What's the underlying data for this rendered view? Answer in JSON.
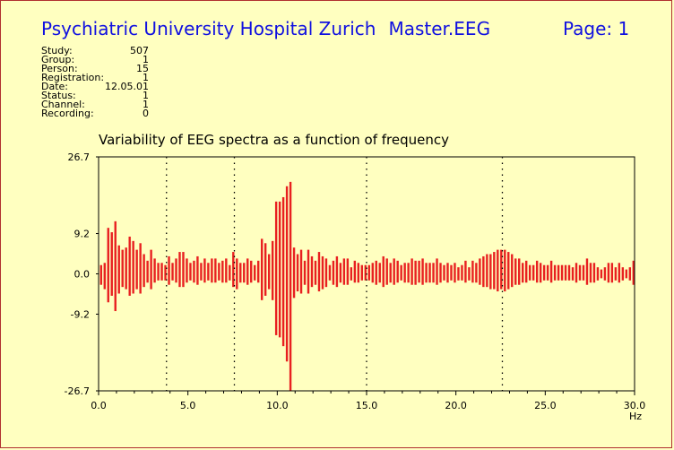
{
  "header": {
    "institution": "Psychiatric University Hospital Zurich",
    "program": "Master.EEG",
    "page_label": "Page:",
    "page_number": "1"
  },
  "meta": [
    {
      "key": "Study:",
      "value": "507"
    },
    {
      "key": "Group:",
      "value": "1"
    },
    {
      "key": "Person:",
      "value": "15"
    },
    {
      "key": "Registration:",
      "value": "1"
    },
    {
      "key": "Date:",
      "value": "12.05.01"
    },
    {
      "key": "Status:",
      "value": "1"
    },
    {
      "key": "Channel:",
      "value": "1"
    },
    {
      "key": "Recording:",
      "value": "0"
    }
  ],
  "colors": {
    "header_text": "#1010E0",
    "bars": "#E82020",
    "background": "#FFFFC0",
    "border": "#B03030"
  },
  "chart_data": {
    "type": "bar",
    "title": "Variability of EEG spectra as a function of frequency",
    "xlabel": "Hz",
    "ylabel": "",
    "xlim": [
      0,
      30
    ],
    "ylim": [
      -26.7,
      26.7
    ],
    "x_ticks": [
      "0.0",
      "5.0",
      "10.0",
      "15.0",
      "20.0",
      "25.0",
      "30.0"
    ],
    "y_ticks": [
      "26.7",
      "9.2",
      "0.0",
      "-9.2",
      "-26.7"
    ],
    "y_tick_values": [
      26.7,
      9.2,
      0,
      -9.2,
      -26.7
    ],
    "band_boundaries_hz": [
      3.8,
      7.6,
      15.0,
      22.6
    ],
    "bin_width_hz": 0.2,
    "x": [
      0.2,
      0.4,
      0.6,
      0.8,
      1.0,
      1.2,
      1.4,
      1.6,
      1.8,
      2.0,
      2.2,
      2.4,
      2.6,
      2.8,
      3.0,
      3.2,
      3.4,
      3.6,
      3.8,
      4.0,
      4.2,
      4.4,
      4.6,
      4.8,
      5.0,
      5.2,
      5.4,
      5.6,
      5.8,
      6.0,
      6.2,
      6.4,
      6.6,
      6.8,
      7.0,
      7.2,
      7.4,
      7.6,
      7.8,
      8.0,
      8.2,
      8.4,
      8.6,
      8.8,
      9.0,
      9.2,
      9.4,
      9.6,
      9.8,
      10.0,
      10.2,
      10.4,
      10.6,
      10.8,
      11.0,
      11.2,
      11.4,
      11.6,
      11.8,
      12.0,
      12.2,
      12.4,
      12.6,
      12.8,
      13.0,
      13.2,
      13.4,
      13.6,
      13.8,
      14.0,
      14.2,
      14.4,
      14.6,
      14.8,
      15.0,
      15.2,
      15.4,
      15.6,
      15.8,
      16.0,
      16.2,
      16.4,
      16.6,
      16.8,
      17.0,
      17.2,
      17.4,
      17.6,
      17.8,
      18.0,
      18.2,
      18.4,
      18.6,
      18.8,
      19.0,
      19.2,
      19.4,
      19.6,
      19.8,
      20.0,
      20.2,
      20.4,
      20.6,
      20.8,
      21.0,
      21.2,
      21.4,
      21.6,
      21.8,
      22.0,
      22.2,
      22.4,
      22.6,
      22.8,
      23.0,
      23.2,
      23.4,
      23.6,
      23.8,
      24.0,
      24.2,
      24.4,
      24.6,
      24.8,
      25.0,
      25.2,
      25.4,
      25.6,
      25.8,
      26.0,
      26.2,
      26.4,
      26.6,
      26.8,
      27.0,
      27.2,
      27.4,
      27.6,
      27.8,
      28.0,
      28.2,
      28.4,
      28.6,
      28.8,
      29.0,
      29.2,
      29.4,
      29.6,
      29.8,
      30.0
    ],
    "values": [
      2.0,
      2.5,
      10.5,
      9.5,
      12.0,
      6.5,
      5.5,
      6.0,
      8.5,
      7.5,
      5.5,
      7.0,
      4.5,
      3.0,
      5.5,
      3.5,
      2.5,
      2.5,
      2.0,
      4.0,
      2.5,
      3.5,
      5.0,
      5.0,
      3.5,
      2.5,
      3.0,
      4.0,
      2.5,
      3.5,
      2.5,
      3.5,
      3.5,
      2.5,
      3.0,
      3.5,
      2.0,
      5.0,
      3.5,
      2.5,
      2.5,
      3.5,
      3.0,
      2.0,
      3.0,
      8.0,
      7.0,
      4.5,
      7.5,
      16.5,
      16.5,
      17.5,
      20.0,
      21.0,
      6.0,
      4.5,
      5.5,
      3.0,
      5.5,
      4.0,
      3.0,
      5.0,
      4.0,
      3.5,
      2.0,
      3.0,
      4.0,
      2.5,
      3.5,
      3.5,
      1.5,
      3.0,
      2.5,
      2.0,
      2.0,
      2.0,
      2.5,
      3.0,
      2.5,
      4.0,
      3.5,
      2.5,
      3.5,
      3.0,
      2.0,
      2.5,
      2.5,
      3.5,
      3.0,
      3.0,
      3.5,
      2.5,
      2.5,
      2.5,
      3.5,
      2.5,
      2.0,
      2.5,
      2.0,
      2.5,
      1.5,
      2.0,
      3.0,
      1.5,
      3.0,
      2.5,
      3.5,
      4.0,
      4.5,
      4.5,
      5.0,
      5.5,
      5.5,
      5.5,
      5.0,
      4.5,
      3.5,
      3.5,
      2.5,
      3.0,
      2.0,
      2.0,
      3.0,
      2.5,
      2.0,
      2.0,
      3.0,
      2.0,
      2.0,
      2.0,
      2.0,
      2.0,
      1.5,
      2.5,
      2.0,
      2.0,
      3.5,
      2.5,
      2.5,
      1.5,
      1.0,
      1.5,
      2.5,
      2.5,
      1.5,
      2.5,
      1.5,
      1.0,
      1.5,
      3.0
    ],
    "neg_values": [
      -2.5,
      -3.5,
      -6.5,
      -5.0,
      -8.5,
      -4.5,
      -3.0,
      -3.5,
      -5.0,
      -4.5,
      -3.5,
      -4.5,
      -3.0,
      -2.0,
      -3.5,
      -2.0,
      -1.5,
      -1.5,
      -1.5,
      -2.5,
      -1.5,
      -2.0,
      -3.0,
      -3.0,
      -2.0,
      -1.5,
      -2.0,
      -2.5,
      -1.5,
      -2.0,
      -1.5,
      -2.0,
      -2.0,
      -1.5,
      -2.0,
      -2.0,
      -1.5,
      -3.0,
      -3.5,
      -2.0,
      -2.0,
      -2.5,
      -2.0,
      -1.5,
      -2.0,
      -6.0,
      -5.0,
      -3.5,
      -6.0,
      -14.0,
      -14.5,
      -16.5,
      -20.0,
      -26.7,
      -5.5,
      -4.0,
      -4.5,
      -2.5,
      -4.5,
      -3.0,
      -2.5,
      -4.0,
      -3.5,
      -3.0,
      -1.5,
      -2.5,
      -3.0,
      -2.0,
      -2.5,
      -2.5,
      -1.5,
      -2.0,
      -2.0,
      -1.5,
      -1.5,
      -1.5,
      -2.0,
      -2.5,
      -2.0,
      -3.0,
      -2.5,
      -2.0,
      -2.5,
      -2.0,
      -1.5,
      -2.0,
      -2.0,
      -2.5,
      -2.5,
      -2.0,
      -2.5,
      -2.0,
      -2.0,
      -2.0,
      -2.5,
      -2.0,
      -1.5,
      -2.0,
      -1.5,
      -2.0,
      -1.5,
      -1.5,
      -2.0,
      -1.5,
      -2.0,
      -2.0,
      -2.5,
      -3.0,
      -3.0,
      -3.5,
      -3.5,
      -4.0,
      -3.5,
      -4.0,
      -3.5,
      -3.0,
      -2.5,
      -2.5,
      -2.0,
      -2.0,
      -1.5,
      -1.5,
      -2.0,
      -2.0,
      -1.5,
      -1.5,
      -2.0,
      -1.5,
      -1.5,
      -1.5,
      -1.5,
      -1.5,
      -1.5,
      -2.0,
      -1.5,
      -1.5,
      -2.5,
      -2.0,
      -2.0,
      -1.5,
      -1.0,
      -1.5,
      -2.0,
      -2.0,
      -1.5,
      -2.0,
      -1.5,
      -1.0,
      -1.5,
      -2.5
    ]
  }
}
